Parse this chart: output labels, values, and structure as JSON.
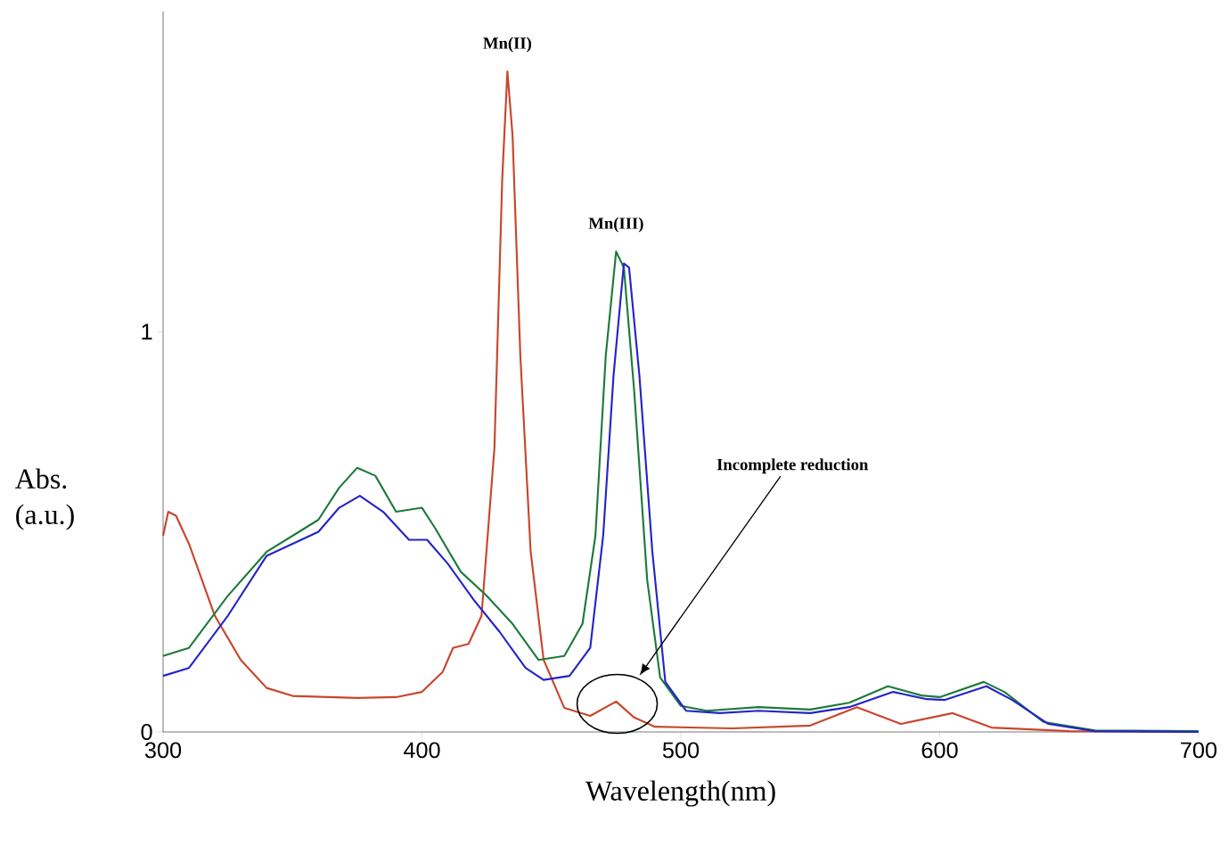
{
  "chart_data": {
    "type": "line",
    "xlabel": "Wavelength(nm)",
    "ylabel": "Abs. (a.u.)",
    "xlim": [
      300,
      700
    ],
    "ylim": [
      0,
      1.8
    ],
    "xticks": [
      300,
      400,
      500,
      600,
      700
    ],
    "yticks": [
      0,
      1
    ],
    "series": [
      {
        "color": "#c8462c",
        "x": [
          300,
          302,
          305,
          310,
          320,
          330,
          340,
          350,
          375,
          390,
          400,
          408,
          412,
          418,
          423,
          428,
          431,
          433,
          435,
          438,
          442,
          447,
          455,
          465,
          475,
          482,
          490,
          520,
          550,
          568,
          585,
          605,
          620,
          650,
          700
        ],
        "values": [
          0.49,
          0.55,
          0.54,
          0.47,
          0.29,
          0.18,
          0.11,
          0.09,
          0.085,
          0.087,
          0.1,
          0.15,
          0.21,
          0.22,
          0.29,
          0.71,
          1.38,
          1.65,
          1.49,
          0.94,
          0.45,
          0.18,
          0.06,
          0.04,
          0.076,
          0.036,
          0.013,
          0.009,
          0.016,
          0.062,
          0.02,
          0.047,
          0.011,
          0.002,
          0
        ]
      },
      {
        "color": "#1e7a3c",
        "x": [
          300,
          310,
          325,
          340,
          350,
          360,
          368,
          375,
          382,
          390,
          400,
          405,
          415,
          425,
          435,
          445,
          455,
          462,
          467,
          471,
          475,
          478,
          482,
          487,
          492,
          500,
          510,
          530,
          550,
          565,
          580,
          593,
          600,
          617,
          625,
          640,
          660,
          700
        ],
        "values": [
          0.19,
          0.21,
          0.34,
          0.45,
          0.49,
          0.53,
          0.61,
          0.66,
          0.64,
          0.55,
          0.56,
          0.51,
          0.4,
          0.34,
          0.27,
          0.18,
          0.19,
          0.27,
          0.49,
          0.94,
          1.2,
          1.16,
          0.85,
          0.38,
          0.136,
          0.065,
          0.053,
          0.062,
          0.056,
          0.073,
          0.114,
          0.091,
          0.087,
          0.125,
          0.1,
          0.025,
          0.004,
          0.002
        ]
      },
      {
        "color": "#2424c8",
        "x": [
          300,
          310,
          325,
          340,
          350,
          360,
          368,
          376,
          385,
          395,
          402,
          410,
          420,
          430,
          440,
          447,
          457,
          465,
          470,
          474,
          478,
          480,
          484,
          489,
          494,
          502,
          515,
          530,
          550,
          565,
          582,
          595,
          602,
          618,
          628,
          642,
          660,
          700
        ],
        "values": [
          0.14,
          0.16,
          0.29,
          0.44,
          0.47,
          0.5,
          0.56,
          0.59,
          0.55,
          0.48,
          0.48,
          0.42,
          0.33,
          0.25,
          0.16,
          0.13,
          0.14,
          0.21,
          0.49,
          0.89,
          1.17,
          1.16,
          0.89,
          0.45,
          0.125,
          0.053,
          0.047,
          0.053,
          0.047,
          0.062,
          0.1,
          0.082,
          0.08,
          0.114,
          0.08,
          0.02,
          0.002,
          0
        ]
      }
    ],
    "annotations": [
      "Mn(II)",
      "Mn(III)",
      "Incomplete reduction"
    ]
  }
}
